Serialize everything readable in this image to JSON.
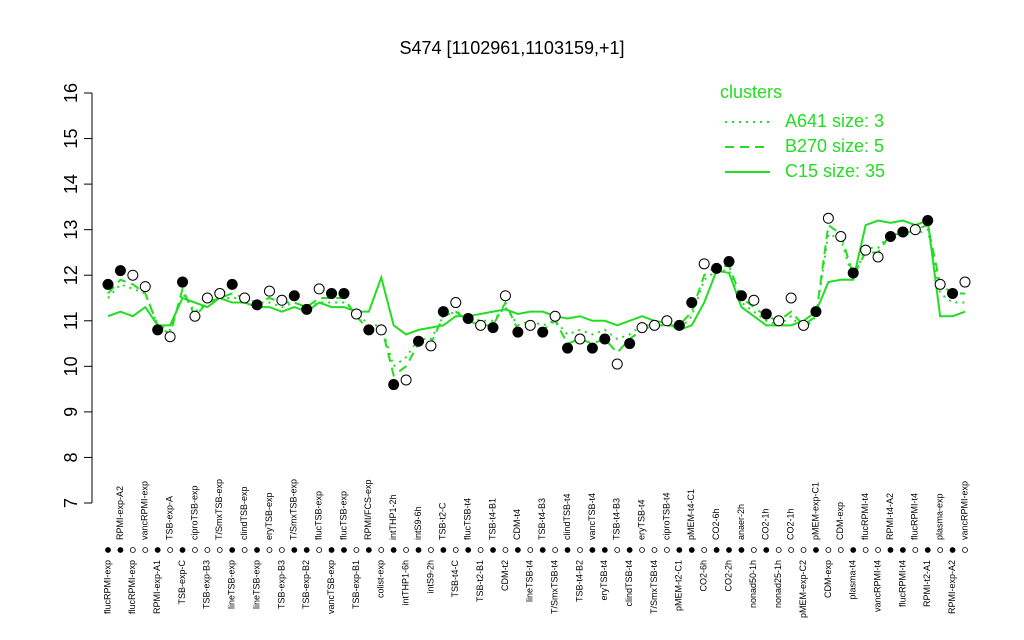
{
  "chart_data": {
    "type": "scatter",
    "title": "S474 [1102961,1103159,+1]",
    "categories": [
      "flucRPMI-exp",
      "RPMI-exp-A2",
      "flucRPMI-exp",
      "vancRPMI-exp",
      "RPMI-exp-A1",
      "TSB-exp-A",
      "TSB-exp-C",
      "ciproTSB-exp",
      "TSB-exp-B3",
      "T/SmxTSB-exp",
      "lineTSB-exp",
      "clindTSB-exp",
      "lineTSB-exp",
      "eryTSB-exp",
      "TSB-exp-B3",
      "T/SmxTSB-exp",
      "TSB-exp-B2",
      "flucTSB-exp",
      "vancTSB-exp",
      "flucTSB-exp",
      "TSB-exp-B1",
      "RPMI/FCS-exp",
      "colist-exp",
      "intTHP1-2h",
      "intTHP1-6h",
      "intS9-6h",
      "intS9-2h",
      "TSB-t2-C",
      "TSB-t4-C",
      "flucTSB-t4",
      "TSB-t2-B1",
      "TSB-t4-B1",
      "CDM-t2",
      "CDM-t4",
      "lineTSB-t4",
      "TSB-t4-B3",
      "T/SmxTSB-t4",
      "clindTSB-t4",
      "TSB-t4-B2",
      "vancTSB-t4",
      "eryTSB-t4",
      "TSB-t4-B3",
      "clindTSB-t4",
      "eryTSB-t4",
      "T/SmxTSB-t4",
      "ciproTSB-t4",
      "pMEM-t2-C1",
      "pMEM-t4-C1",
      "CO2-6h",
      "CO2-6h",
      "CO2-2h",
      "anaer-2h",
      "nonad50-1h",
      "CO2-1h",
      "nonad25-1h",
      "CO2-1h",
      "pMEM-exp-C2",
      "pMEM-exp-C1",
      "CDM-exp",
      "CDM-exp",
      "plasma-t4",
      "flucRPMI-t4",
      "vancRPMI-t4",
      "RPMI-t4-A2",
      "flucRPMI-t4",
      "flucRPMI-t4",
      "RPMI-t2-A1",
      "plasma-exp",
      "RPMI-exp-A2",
      "vancRPMI-exp"
    ],
    "values": [
      11.8,
      12.1,
      12.0,
      11.75,
      10.8,
      10.65,
      11.85,
      11.1,
      11.5,
      11.6,
      11.8,
      11.5,
      11.35,
      11.65,
      11.45,
      11.55,
      11.25,
      11.7,
      11.6,
      11.6,
      11.15,
      10.8,
      10.8,
      9.6,
      9.7,
      10.55,
      10.45,
      11.2,
      11.4,
      11.05,
      10.9,
      10.85,
      11.55,
      10.75,
      10.9,
      10.75,
      11.1,
      10.4,
      10.6,
      10.4,
      10.6,
      10.05,
      10.5,
      10.85,
      10.9,
      11.0,
      10.9,
      11.4,
      12.25,
      12.15,
      12.3,
      11.55,
      11.45,
      11.15,
      11.0,
      11.5,
      10.9,
      11.2,
      13.25,
      12.85,
      12.05,
      12.55,
      12.4,
      12.85,
      12.95,
      13.0,
      13.2,
      11.8,
      11.6,
      11.85
    ],
    "point_filled": [
      true,
      true,
      false,
      false,
      true,
      false,
      true,
      false,
      false,
      false,
      true,
      false,
      true,
      false,
      false,
      true,
      true,
      false,
      true,
      true,
      false,
      true,
      false,
      true,
      false,
      true,
      false,
      true,
      false,
      true,
      false,
      true,
      false,
      true,
      false,
      true,
      false,
      true,
      false,
      true,
      true,
      false,
      true,
      false,
      false,
      false,
      true,
      true,
      false,
      true,
      true,
      true,
      false,
      true,
      false,
      false,
      false,
      true,
      false,
      false,
      true,
      false,
      false,
      true,
      true,
      false,
      true,
      false,
      true,
      false
    ],
    "series": [
      {
        "name": "A641 size: 3",
        "style": "dotted",
        "color": "#22dd22",
        "values": [
          11.5,
          11.8,
          11.7,
          11.6,
          10.9,
          10.8,
          11.6,
          11.2,
          11.4,
          11.5,
          11.5,
          11.5,
          11.4,
          11.4,
          11.3,
          11.4,
          11.3,
          11.4,
          11.4,
          11.4,
          11.2,
          10.9,
          10.9,
          10.0,
          10.2,
          10.6,
          10.6,
          11.1,
          11.2,
          11.1,
          11.0,
          11.0,
          11.3,
          10.9,
          11.0,
          10.9,
          11.0,
          10.7,
          10.8,
          10.7,
          10.8,
          10.6,
          10.7,
          10.9,
          10.9,
          10.9,
          10.8,
          11.1,
          11.9,
          12.1,
          12.1,
          11.4,
          11.2,
          11.0,
          10.9,
          11.1,
          10.8,
          11.1,
          12.9,
          12.8,
          11.9,
          12.6,
          12.6,
          12.9,
          12.9,
          12.9,
          13.0,
          11.6,
          11.4,
          11.4
        ]
      },
      {
        "name": "B270 size: 5",
        "style": "dashed",
        "color": "#22dd22",
        "values": [
          11.6,
          11.9,
          11.8,
          11.6,
          10.9,
          10.7,
          11.7,
          11.1,
          11.4,
          11.5,
          11.6,
          11.5,
          11.4,
          11.5,
          11.4,
          11.4,
          11.3,
          11.5,
          11.5,
          11.5,
          11.1,
          10.8,
          10.9,
          9.8,
          10.0,
          10.5,
          10.5,
          11.1,
          11.2,
          11.0,
          10.9,
          10.9,
          11.4,
          10.8,
          10.9,
          10.8,
          11.0,
          10.5,
          10.6,
          10.5,
          10.6,
          10.3,
          10.6,
          10.8,
          10.9,
          10.9,
          10.9,
          11.2,
          12.0,
          12.2,
          12.2,
          11.5,
          11.3,
          11.1,
          11.0,
          11.2,
          10.9,
          11.1,
          13.1,
          12.9,
          12.0,
          12.5,
          12.5,
          12.9,
          12.9,
          13.0,
          13.1,
          11.8,
          11.6,
          11.6
        ]
      },
      {
        "name": "C15 size: 35",
        "style": "solid",
        "color": "#22dd22",
        "values": [
          11.1,
          11.2,
          11.1,
          11.3,
          10.9,
          10.9,
          11.5,
          11.4,
          11.3,
          11.5,
          11.4,
          11.4,
          11.3,
          11.3,
          11.2,
          11.3,
          11.2,
          11.4,
          11.3,
          11.3,
          11.2,
          11.2,
          11.95,
          10.9,
          10.7,
          10.8,
          10.85,
          10.9,
          11.1,
          11.1,
          11.15,
          11.2,
          11.25,
          11.15,
          11.2,
          11.2,
          11.1,
          11.05,
          11.1,
          11.0,
          11.0,
          10.9,
          11.0,
          11.1,
          11.0,
          10.95,
          10.8,
          10.9,
          11.4,
          12.1,
          12.05,
          11.3,
          11.1,
          10.9,
          10.9,
          10.9,
          11.0,
          11.2,
          11.85,
          11.9,
          11.9,
          13.1,
          13.2,
          13.15,
          13.2,
          13.1,
          13.2,
          11.1,
          11.1,
          11.2
        ]
      }
    ],
    "legend_title": "clusters",
    "legend_position": "topright",
    "ylim": [
      7,
      16
    ],
    "yticks": [
      7,
      8,
      9,
      10,
      11,
      12,
      13,
      14,
      15,
      16
    ]
  }
}
